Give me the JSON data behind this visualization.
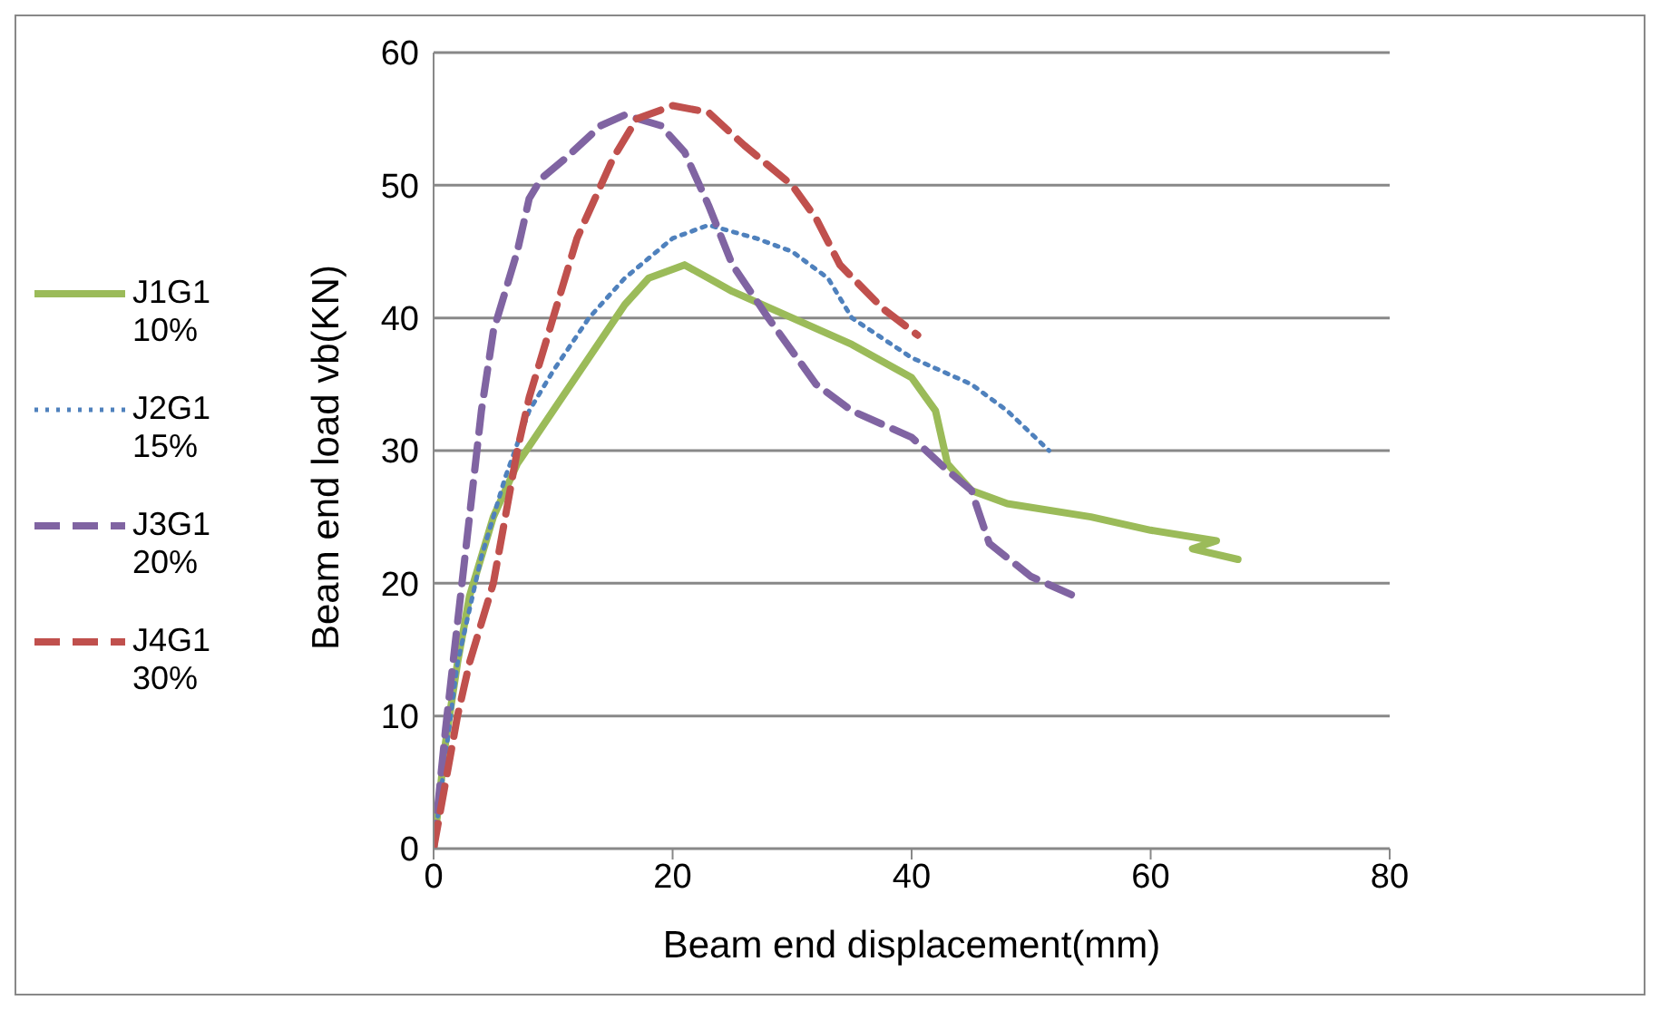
{
  "chart_data": {
    "type": "line",
    "xlabel": "Beam end displacement(mm)",
    "ylabel": "Beam end load vb(KN)",
    "xlim": [
      0,
      80
    ],
    "xticks": [
      0,
      20,
      40,
      60,
      80
    ],
    "ylim": [
      0,
      60
    ],
    "yticks": [
      0,
      10,
      20,
      30,
      40,
      50,
      60
    ],
    "grid": "y",
    "legend": "left",
    "marker": "none",
    "series": [
      {
        "name": "J1G1 10%",
        "color": "#9bbb59",
        "line_style": "solid",
        "x": [
          0,
          1,
          2,
          3,
          5,
          7,
          10,
          13,
          16,
          18,
          21,
          23,
          25,
          30,
          35,
          40,
          42,
          43,
          45,
          48,
          55,
          60,
          65.5,
          63.5,
          67.3
        ],
        "values": [
          0,
          8,
          14,
          19,
          25,
          29,
          33,
          37,
          41,
          43,
          44,
          43,
          42,
          40,
          38,
          35.5,
          33,
          29,
          27,
          26,
          25,
          24,
          23.2,
          22.6,
          21.8
        ]
      },
      {
        "name": "J2G1 15%",
        "color": "#4f81bd",
        "line_style": "dotted",
        "x": [
          0,
          1,
          2,
          4,
          6,
          8,
          10,
          13,
          16,
          20,
          23,
          27,
          30,
          33,
          35,
          40,
          45,
          48,
          51.5
        ],
        "values": [
          0,
          7,
          14,
          22,
          28,
          33,
          36,
          40,
          43,
          46,
          47,
          46,
          45,
          43,
          40,
          37,
          35,
          33,
          30
        ]
      },
      {
        "name": "J3G1 20%",
        "color": "#8064a2",
        "line_style": "dashed",
        "x": [
          0,
          1,
          2,
          3,
          4,
          5,
          7,
          8,
          9,
          11,
          14,
          16,
          19,
          21,
          23,
          25,
          28,
          32,
          35,
          40,
          43,
          45,
          46.5,
          50,
          53.7
        ],
        "values": [
          0,
          9,
          17,
          25,
          33,
          39,
          45,
          49,
          50.5,
          52,
          54.5,
          55.3,
          54.5,
          52.5,
          48.5,
          44,
          40,
          35,
          33,
          31,
          28.5,
          27,
          23,
          20.5,
          19
        ]
      },
      {
        "name": "J4G1 30%",
        "color": "#c0504d",
        "line_style": "dashed",
        "x": [
          0,
          1,
          2,
          3,
          5,
          6,
          7,
          8,
          10,
          12,
          13,
          15,
          17,
          20,
          23,
          26,
          30,
          32,
          34,
          37.6,
          40.5
        ],
        "values": [
          0,
          5,
          10,
          14,
          20,
          25,
          30,
          34,
          40,
          46,
          48,
          52,
          55,
          56,
          55.5,
          53,
          50,
          47.5,
          44,
          40.7,
          38.7
        ]
      }
    ]
  }
}
